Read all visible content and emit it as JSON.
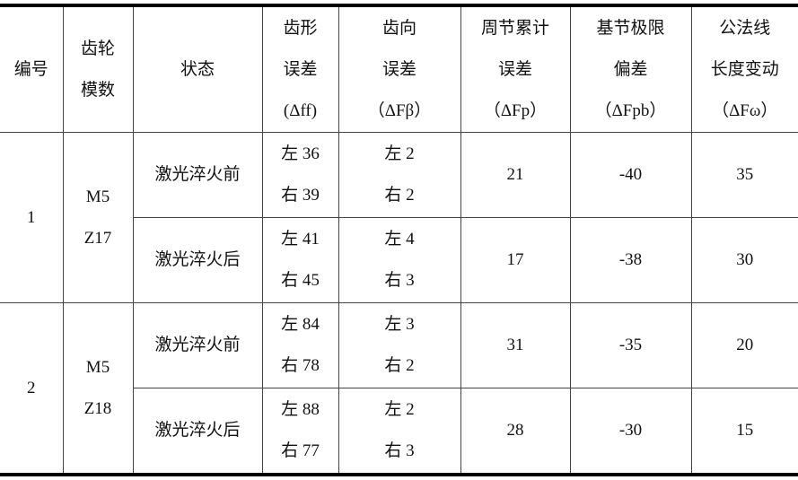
{
  "headers": {
    "id": [
      "编号"
    ],
    "module": [
      "齿轮",
      "模数"
    ],
    "state": [
      "状态"
    ],
    "profile": [
      "齿形",
      "误差",
      "(Δff)"
    ],
    "helix": [
      "齿向",
      "误差",
      "（ΔFβ）"
    ],
    "pitch_cum": [
      "周节累计",
      "误差",
      "（ΔFp）"
    ],
    "base_pitch": [
      "基节极限",
      "偏差",
      "（ΔFpb）"
    ],
    "normal_len": [
      "公法线",
      "长度变动",
      "（ΔFω）"
    ]
  },
  "groups": [
    {
      "id": "1",
      "module": [
        "M5",
        "Z17"
      ],
      "rows": [
        {
          "state": "激光淬火前",
          "profile": [
            "左 36",
            "右 39"
          ],
          "helix": [
            "左 2",
            "右 2"
          ],
          "pitch_cum": "21",
          "base_pitch": "-40",
          "normal_len": "35"
        },
        {
          "state": "激光淬火后",
          "profile": [
            "左 41",
            "右 45"
          ],
          "helix": [
            "左 4",
            "右 3"
          ],
          "pitch_cum": "17",
          "base_pitch": "-38",
          "normal_len": "30"
        }
      ]
    },
    {
      "id": "2",
      "module": [
        "M5",
        "Z18"
      ],
      "rows": [
        {
          "state": "激光淬火前",
          "profile": [
            "左 84",
            "右 78"
          ],
          "helix": [
            "左 3",
            "右 2"
          ],
          "pitch_cum": "31",
          "base_pitch": "-35",
          "normal_len": "20"
        },
        {
          "state": "激光淬火后",
          "profile": [
            "左 88",
            "右 77"
          ],
          "helix": [
            "左 2",
            "右 3"
          ],
          "pitch_cum": "28",
          "base_pitch": "-30",
          "normal_len": "15"
        }
      ]
    }
  ]
}
